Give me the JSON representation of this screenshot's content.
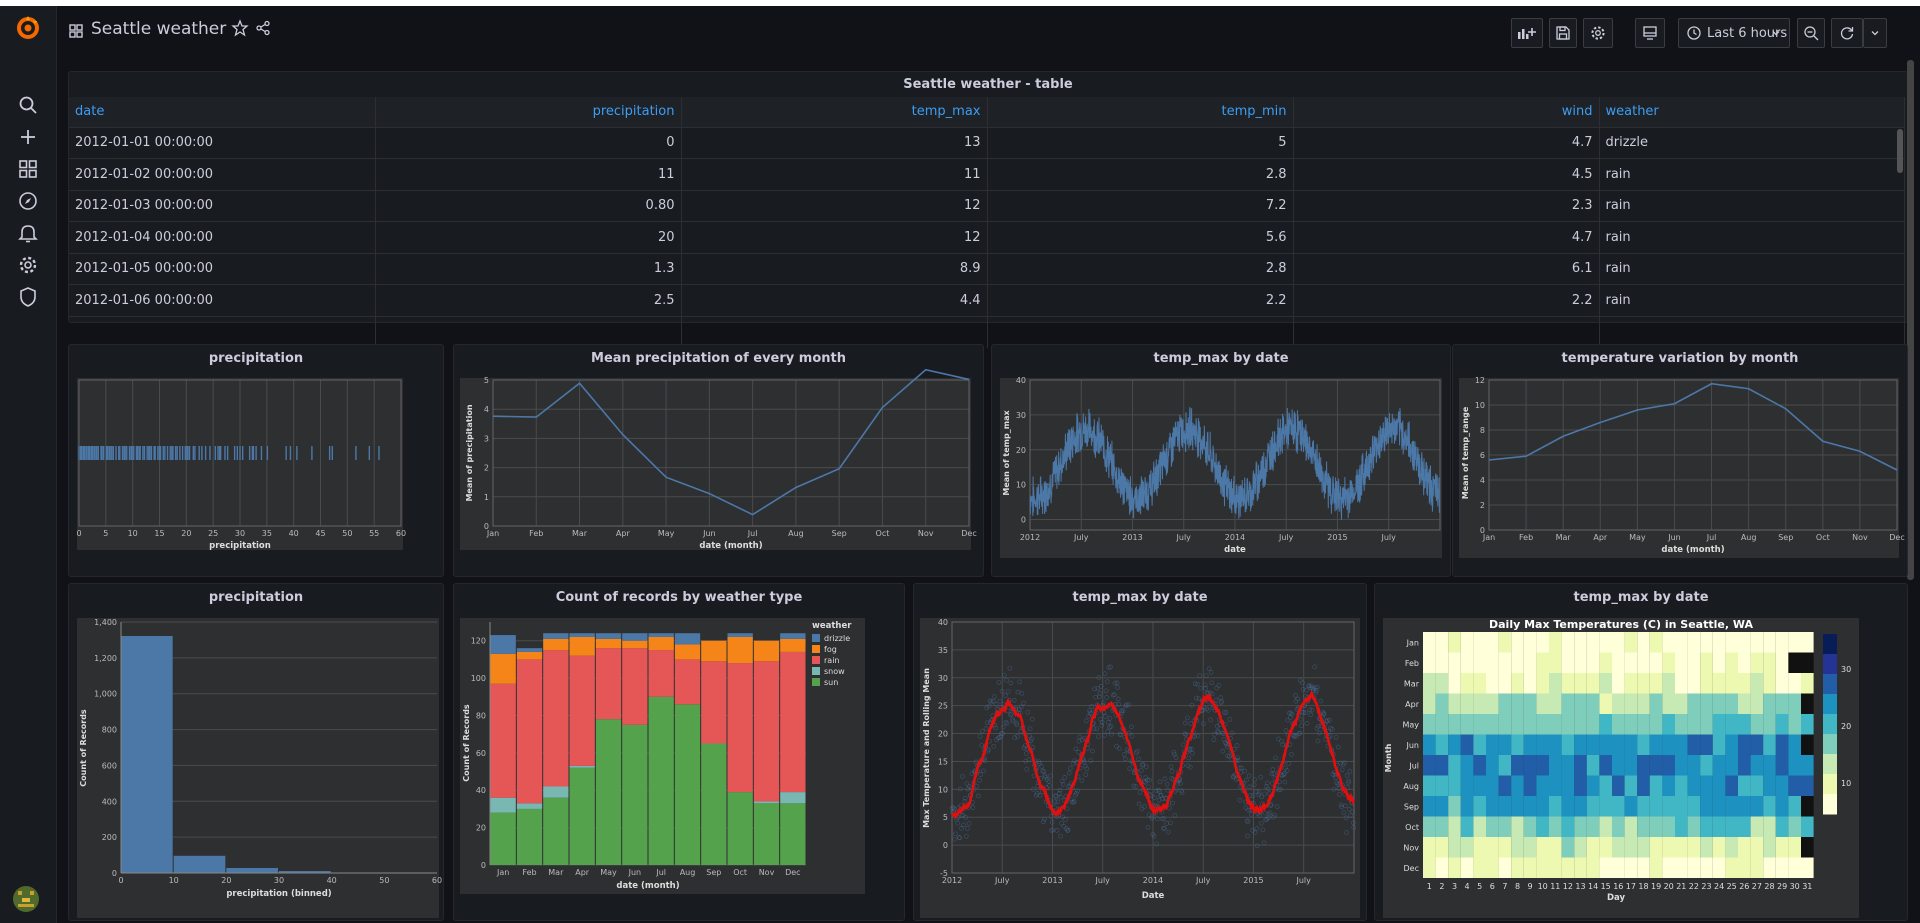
{
  "header": {
    "title": "Seattle weather",
    "time_range": "Last 6 hours"
  },
  "table": {
    "title": "Seattle weather - table",
    "columns": [
      "date",
      "precipitation",
      "temp_max",
      "temp_min",
      "wind",
      "weather"
    ],
    "rows": [
      [
        "2012-01-01 00:00:00",
        "0",
        "13",
        "5",
        "4.7",
        "drizzle"
      ],
      [
        "2012-01-02 00:00:00",
        "11",
        "11",
        "2.8",
        "4.5",
        "rain"
      ],
      [
        "2012-01-03 00:00:00",
        "0.80",
        "12",
        "7.2",
        "2.3",
        "rain"
      ],
      [
        "2012-01-04 00:00:00",
        "20",
        "12",
        "5.6",
        "4.7",
        "rain"
      ],
      [
        "2012-01-05 00:00:00",
        "1.3",
        "8.9",
        "2.8",
        "6.1",
        "rain"
      ],
      [
        "2012-01-06 00:00:00",
        "2.5",
        "4.4",
        "2.2",
        "2.2",
        "rain"
      ]
    ]
  },
  "panels": {
    "strip_title": "precipitation",
    "meanprecip_title": "Mean precipitation of every month",
    "tempmax1_title": "temp_max by date",
    "tempvar_title": "temperature variation by month",
    "hist_title": "precipitation",
    "count_title": "Count of records by weather type",
    "tempmax2_title": "temp_max by date",
    "heatmap_title": "temp_max by date"
  },
  "chart_data": [
    {
      "id": "strip",
      "type": "scatter",
      "xlabel": "precipitation",
      "xlim": [
        0,
        60
      ],
      "xticks": [
        0,
        5,
        10,
        15,
        20,
        25,
        30,
        35,
        40,
        45,
        50,
        55,
        60
      ],
      "values": [
        0,
        0.3,
        0.5,
        0.8,
        1,
        1.3,
        1.5,
        1.8,
        2,
        2.3,
        2.5,
        2.8,
        3,
        3.3,
        3.6,
        4.1,
        4.3,
        4.6,
        5.1,
        5.3,
        5.6,
        5.8,
        6.1,
        6.4,
        6.9,
        7.4,
        7.6,
        8.1,
        8.4,
        8.6,
        8.9,
        9.4,
        9.7,
        9.9,
        10.2,
        10.7,
        10.9,
        11.2,
        11.4,
        11.9,
        12.2,
        12.7,
        13,
        13.2,
        13.5,
        14,
        14.2,
        14.7,
        15,
        15.2,
        15.7,
        16,
        16.5,
        17,
        17.3,
        17.5,
        18,
        18.3,
        18.8,
        19.3,
        19.8,
        20.1,
        20.3,
        20.6,
        21.3,
        21.6,
        22.4,
        22.9,
        23.6,
        24.4,
        25.4,
        25.9,
        26.2,
        26.4,
        27.2,
        27.7,
        29,
        29.5,
        30,
        30.5,
        31.8,
        32.3,
        32.5,
        33,
        34,
        35.1,
        38.6,
        39.4,
        40.6,
        43.4,
        46.7,
        47.2,
        51.6,
        54.1,
        55.9
      ]
    },
    {
      "id": "meanprecip",
      "type": "line",
      "xlabel": "date (month)",
      "ylabel": "Mean of precipitation",
      "ylim": [
        0,
        5
      ],
      "yticks": [
        0,
        1,
        2,
        3,
        4,
        5
      ],
      "categories": [
        "Jan",
        "Feb",
        "Mar",
        "Apr",
        "May",
        "Jun",
        "Jul",
        "Aug",
        "Sep",
        "Oct",
        "Nov",
        "Dec"
      ],
      "values": [
        3.76,
        3.73,
        4.89,
        3.13,
        1.67,
        1.11,
        0.39,
        1.32,
        1.96,
        4.06,
        5.35,
        5.02
      ]
    },
    {
      "id": "tempmax1",
      "type": "line",
      "xlabel": "date",
      "ylabel": "Mean of temp_max",
      "ylim": [
        -3,
        40
      ],
      "yticks": [
        0,
        10,
        20,
        30,
        40
      ],
      "xticks": [
        "2012",
        "July",
        "2013",
        "July",
        "2014",
        "July",
        "2015",
        "July"
      ]
    },
    {
      "id": "tempvar",
      "type": "line",
      "xlabel": "date (month)",
      "ylabel": "Mean of temp_range",
      "ylim": [
        0,
        12
      ],
      "yticks": [
        0,
        2,
        4,
        6,
        8,
        10,
        12
      ],
      "categories": [
        "Jan",
        "Feb",
        "Mar",
        "Apr",
        "May",
        "Jun",
        "Jul",
        "Aug",
        "Sep",
        "Oct",
        "Nov",
        "Dec"
      ],
      "values": [
        5.6,
        5.9,
        7.5,
        8.6,
        9.6,
        10.1,
        11.7,
        11.3,
        9.7,
        7.1,
        6.3,
        4.8
      ]
    },
    {
      "id": "hist",
      "type": "bar",
      "xlabel": "precipitation (binned)",
      "ylabel": "Count of Records",
      "xlim": [
        0,
        60
      ],
      "ylim": [
        0,
        1400
      ],
      "xticks": [
        0,
        10,
        20,
        30,
        40,
        50,
        60
      ],
      "ytick_labels": [
        "0",
        "200",
        "400",
        "600",
        "800",
        "1,000",
        "1,200",
        "1,400"
      ],
      "bins": [
        [
          0,
          10
        ],
        [
          10,
          20
        ],
        [
          20,
          30
        ],
        [
          30,
          40
        ],
        [
          40,
          50
        ],
        [
          50,
          60
        ]
      ],
      "values": [
        1322,
        96,
        28,
        11,
        1,
        3
      ]
    },
    {
      "id": "count",
      "type": "bar",
      "xlabel": "date (month)",
      "ylabel": "Count of Records",
      "ylim": [
        0,
        130
      ],
      "yticks": [
        0,
        20,
        40,
        60,
        80,
        100,
        120
      ],
      "legend_title": "weather",
      "categories": [
        "Jan",
        "Feb",
        "Mar",
        "Apr",
        "May",
        "Jun",
        "Jul",
        "Aug",
        "Sep",
        "Oct",
        "Nov",
        "Dec"
      ],
      "series": [
        {
          "name": "sun",
          "color": "#54a24b",
          "values": [
            28,
            30,
            36,
            52,
            78,
            75,
            90,
            86,
            65,
            39,
            33,
            33
          ]
        },
        {
          "name": "snow",
          "color": "#79b7b2",
          "values": [
            8,
            3,
            6,
            1,
            0,
            0,
            0,
            0,
            0,
            0,
            1,
            6
          ]
        },
        {
          "name": "rain",
          "color": "#e45756",
          "values": [
            61,
            77,
            73,
            59,
            38,
            41,
            25,
            24,
            44,
            69,
            75,
            75
          ]
        },
        {
          "name": "fog",
          "color": "#f58518",
          "values": [
            16,
            4,
            6,
            10,
            5,
            4,
            7,
            8,
            11,
            14,
            11,
            7
          ]
        },
        {
          "name": "drizzle",
          "color": "#4c78a8",
          "values": [
            10,
            2,
            3,
            2,
            3,
            4,
            2,
            6,
            0,
            2,
            0,
            3
          ]
        }
      ]
    },
    {
      "id": "tempmax2",
      "type": "scatter",
      "xlabel": "Date",
      "ylabel": "Max Temperature and Rolling Mean",
      "ylim": [
        -5,
        40
      ],
      "yticks": [
        -5,
        0,
        5,
        10,
        15,
        20,
        25,
        30,
        35,
        40
      ],
      "xticks": [
        "2012",
        "July",
        "2013",
        "July",
        "2014",
        "July",
        "2015",
        "July"
      ]
    },
    {
      "id": "heatmap",
      "type": "heatmap",
      "title": "Daily Max Temperatures (C) in Seattle, WA",
      "xlabel": "Day",
      "ylabel": "Month",
      "rows": [
        "Jan",
        "Feb",
        "Mar",
        "Apr",
        "May",
        "Jun",
        "Jul",
        "Aug",
        "Sep",
        "Oct",
        "Nov",
        "Dec"
      ],
      "columns": [
        "1",
        "2",
        "3",
        "4",
        "5",
        "6",
        "7",
        "8",
        "9",
        "10",
        "11",
        "12",
        "13",
        "14",
        "15",
        "16",
        "17",
        "18",
        "19",
        "20",
        "21",
        "22",
        "23",
        "24",
        "25",
        "26",
        "27",
        "28",
        "29",
        "30",
        "31"
      ],
      "legend_ticks": [
        "30",
        "20",
        "10"
      ]
    }
  ]
}
